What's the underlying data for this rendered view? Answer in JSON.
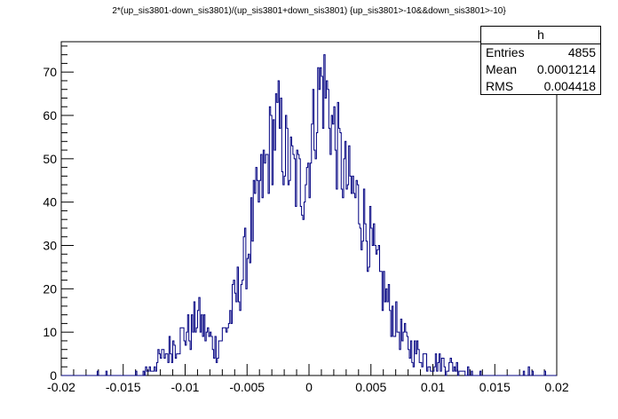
{
  "chart_data": {
    "type": "histogram",
    "title": "2*(up_sis3801-down_sis3801)/(up_sis3801+down_sis3801) {up_sis3801>-10&&down_sis3801>-10}",
    "xlabel": "",
    "ylabel": "",
    "xlim": [
      -0.02,
      0.02
    ],
    "ylim": [
      0,
      77
    ],
    "x_ticks": [
      "-0.02",
      "-0.015",
      "-0.01",
      "-0.005",
      "0",
      "0.005",
      "0.01",
      "0.015",
      "0.02"
    ],
    "x_tick_values": [
      -0.02,
      -0.015,
      -0.01,
      -0.005,
      0,
      0.005,
      0.01,
      0.015,
      0.02
    ],
    "y_ticks": [
      "0",
      "10",
      "20",
      "30",
      "40",
      "50",
      "60",
      "70"
    ],
    "y_tick_values": [
      0,
      10,
      20,
      30,
      40,
      50,
      60,
      70
    ],
    "bins": 400,
    "line_color": "#000080",
    "series": [
      {
        "x": [
          -0.0095,
          -0.009,
          -0.0085,
          -0.008,
          -0.0075,
          -0.007,
          -0.0065,
          -0.006,
          -0.0055,
          -0.005,
          -0.0045,
          -0.004,
          -0.0035,
          -0.003,
          -0.0025,
          -0.002,
          -0.0015,
          -0.001,
          -0.0005,
          0,
          0.0005,
          0.001,
          0.0015,
          0.002,
          0.0025,
          0.003,
          0.0035,
          0.004,
          0.0045,
          0.005,
          0.0055,
          0.006,
          0.0065,
          0.007,
          0.0075,
          0.008,
          0.0085,
          0.009,
          0.0095,
          0.01
        ],
        "values": [
          10,
          14,
          11,
          8,
          7,
          9,
          12,
          17,
          22,
          28,
          36,
          41,
          48,
          55,
          58,
          52,
          48,
          45,
          44,
          50,
          60,
          68,
          64,
          56,
          50,
          45,
          42,
          40,
          36,
          30,
          24,
          20,
          16,
          12,
          9,
          7,
          6,
          5,
          4,
          3
        ]
      }
    ],
    "stats_box": {
      "name": "h",
      "rows": [
        {
          "label": "Entries",
          "value": "4855"
        },
        {
          "label": "Mean",
          "value": "0.0001214"
        },
        {
          "label": "RMS",
          "value": "0.004418"
        }
      ]
    }
  }
}
